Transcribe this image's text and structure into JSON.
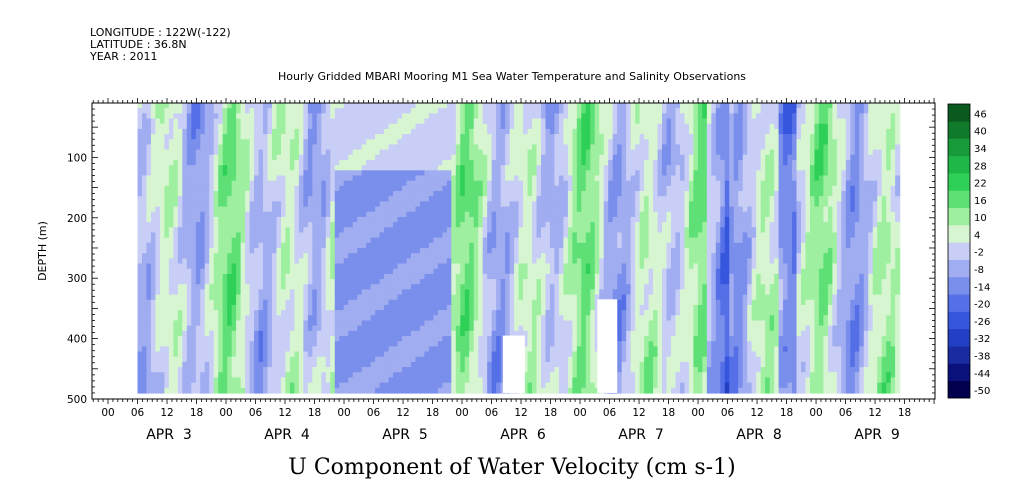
{
  "header": {
    "longitude": "LONGITUDE : 122W(-122)",
    "latitude": "LATITUDE : 36.8N",
    "year": "YEAR : 2011"
  },
  "chart_data": {
    "type": "heatmap",
    "title": "Hourly Gridded MBARI Mooring M1 Sea Water Temperature and Salinity Observations",
    "xlabel": "U Component of Water Velocity (cm s-1)",
    "ylabel": "DEPTH (m)",
    "y_axis": {
      "range": [
        500,
        10
      ],
      "inverted": true,
      "ticks": [
        100,
        200,
        300,
        400,
        500
      ]
    },
    "x_axis": {
      "hour_labels": [
        "00",
        "06",
        "12",
        "18",
        "00",
        "06",
        "12",
        "18",
        "00",
        "06",
        "12",
        "18",
        "00",
        "06",
        "12",
        "18",
        "00",
        "06",
        "12",
        "18",
        "00",
        "06",
        "12",
        "18",
        "00",
        "06",
        "12",
        "18"
      ],
      "day_labels": [
        "APR 3",
        "APR 4",
        "APR 5",
        "APR 6",
        "APR 7",
        "APR 8",
        "APR 9"
      ]
    },
    "colorbar": {
      "levels": [
        -50,
        -44,
        -38,
        -32,
        -26,
        -20,
        -14,
        -8,
        -2,
        4,
        10,
        16,
        22,
        28,
        34,
        40,
        46
      ],
      "labels": [
        "46",
        "40",
        "34",
        "28",
        "22",
        "16",
        "10",
        "4",
        "-2",
        "-8",
        "-14",
        "-20",
        "-26",
        "-32",
        "-38",
        "-44",
        "-50"
      ],
      "colors": [
        "#00004d",
        "#0b117a",
        "#1a2aa1",
        "#2340c4",
        "#3556dd",
        "#5570e6",
        "#7a8eec",
        "#a0adf0",
        "#c8cef5",
        "#d8f5d2",
        "#9ef0a0",
        "#5fe076",
        "#2fd058",
        "#1fb848",
        "#169a3a",
        "#0f7a2c",
        "#0a5a20"
      ]
    },
    "data_coverage": {
      "start_hour": 6,
      "end_hour": 161,
      "min_depth_m": 10,
      "max_depth_m": 490
    },
    "grid": false,
    "legend_placement": "right"
  }
}
